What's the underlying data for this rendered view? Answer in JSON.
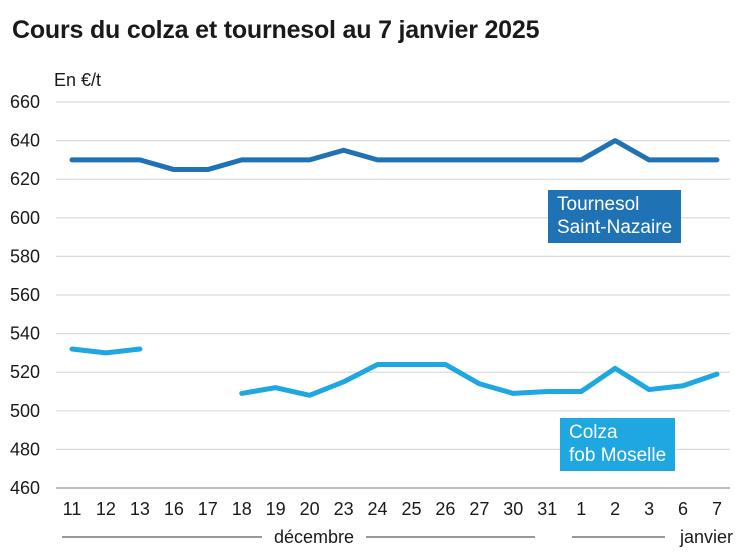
{
  "title": "Cours du colza et tournesol au 7 janvier 2025",
  "chart_data": {
    "type": "line",
    "title": "Cours du colza et tournesol au 7 janvier 2025",
    "ylabel": "En €/t",
    "xlabel": "",
    "ylim": [
      460,
      660
    ],
    "yticks": [
      460,
      480,
      500,
      520,
      540,
      560,
      580,
      600,
      620,
      640,
      660
    ],
    "grid": true,
    "categories": [
      "11",
      "12",
      "13",
      "16",
      "17",
      "18",
      "19",
      "20",
      "23",
      "24",
      "25",
      "26",
      "27",
      "30",
      "31",
      "1",
      "2",
      "3",
      "6",
      "7"
    ],
    "month_labels": [
      {
        "label": "décembre",
        "from": 0,
        "to": 14
      },
      {
        "label": "janvier",
        "from": 15,
        "to": 19
      }
    ],
    "series": [
      {
        "name": "Tournesol Saint-Nazaire",
        "label_lines": [
          "Tournesol",
          "Saint-Nazaire"
        ],
        "color": "#1f72b4",
        "values": [
          630,
          630,
          630,
          625,
          625,
          630,
          630,
          630,
          635,
          630,
          630,
          630,
          630,
          630,
          630,
          630,
          640,
          630,
          630,
          630
        ]
      },
      {
        "name": "Colza fob Moselle",
        "label_lines": [
          "Colza",
          "fob Moselle"
        ],
        "color": "#1ea7e1",
        "values": [
          532,
          530,
          532,
          null,
          null,
          509,
          512,
          508,
          515,
          524,
          524,
          524,
          514,
          509,
          510,
          510,
          522,
          511,
          513,
          519
        ]
      }
    ]
  }
}
